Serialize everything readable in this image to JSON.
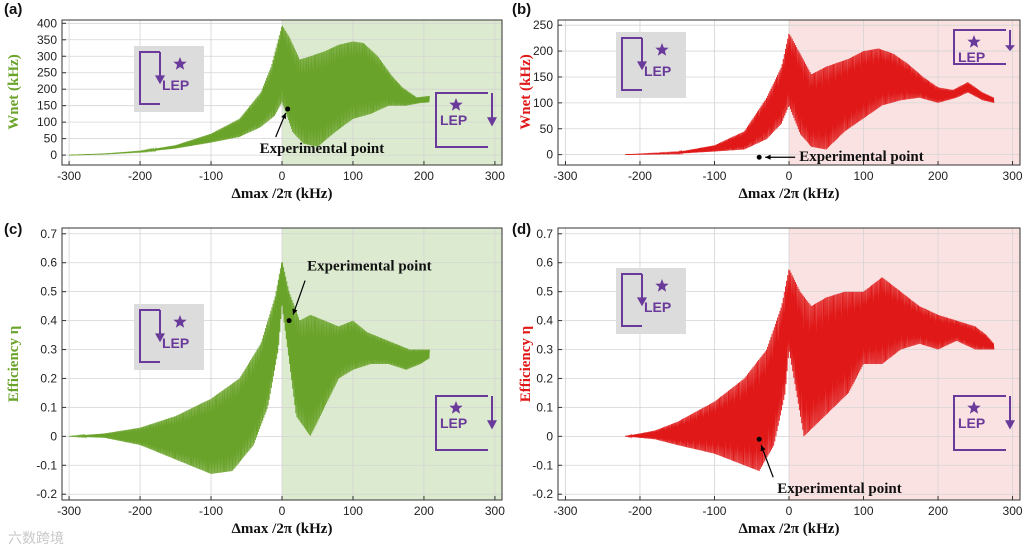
{
  "colors": {
    "green": "#6aa32a",
    "red": "#e01818",
    "green_shade": "#dcebcf",
    "red_shade": "#fbe2e2",
    "lep_purple": "#6a3a9a",
    "lep_box_gray": "#dcdcdc"
  },
  "watermark": "六数跨境",
  "chart_data": [
    {
      "panel": "(a)",
      "type": "line",
      "color_key": "green",
      "xlabel": "Δmax /2π (kHz)",
      "ylabel": "Wnet (kHz)",
      "xlim": [
        -310,
        310
      ],
      "ylim": [
        -30,
        410
      ],
      "xticks": [
        -300,
        -200,
        -100,
        0,
        100,
        200,
        300
      ],
      "yticks": [
        0,
        50,
        100,
        150,
        200,
        250,
        300,
        350,
        400
      ],
      "shaded_x": [
        0,
        310
      ],
      "series": [
        {
          "name": "Wnet",
          "x_range": [
            -300,
            208
          ],
          "lo": [
            [
              -300,
              0
            ],
            [
              -250,
              3
            ],
            [
              -200,
              9
            ],
            [
              -150,
              20
            ],
            [
              -100,
              38
            ],
            [
              -60,
              55
            ],
            [
              -30,
              85
            ],
            [
              -10,
              120
            ],
            [
              -5,
              140
            ],
            [
              0,
              160
            ],
            [
              15,
              70
            ],
            [
              30,
              35
            ],
            [
              50,
              25
            ],
            [
              75,
              70
            ],
            [
              100,
              110
            ],
            [
              125,
              125
            ],
            [
              150,
              150
            ],
            [
              175,
              150
            ],
            [
              195,
              158
            ],
            [
              208,
              160
            ]
          ],
          "hi": [
            [
              -300,
              0
            ],
            [
              -250,
              4
            ],
            [
              -200,
              12
            ],
            [
              -150,
              30
            ],
            [
              -100,
              65
            ],
            [
              -60,
              110
            ],
            [
              -30,
              190
            ],
            [
              -15,
              270
            ],
            [
              0,
              395
            ],
            [
              10,
              360
            ],
            [
              25,
              290
            ],
            [
              40,
              300
            ],
            [
              60,
              315
            ],
            [
              80,
              335
            ],
            [
              100,
              345
            ],
            [
              115,
              340
            ],
            [
              135,
              300
            ],
            [
              155,
              240
            ],
            [
              170,
              205
            ],
            [
              190,
              175
            ],
            [
              208,
              180
            ]
          ]
        }
      ],
      "experimental_point": {
        "x": 8,
        "y": 140
      },
      "annotation": "Experimental point",
      "insets": [
        {
          "label": "LEP",
          "position": "center-left",
          "style": "gray",
          "arrow": "down-left"
        },
        {
          "label": "LEP",
          "position": "bottom-right",
          "style": "white",
          "arrow": "down-right"
        }
      ]
    },
    {
      "panel": "(b)",
      "type": "line",
      "color_key": "red",
      "xlabel": "Δmax /2π (kHz)",
      "ylabel": "Wnet (kHz)",
      "xlim": [
        -310,
        310
      ],
      "ylim": [
        -20,
        260
      ],
      "xticks": [
        -300,
        -200,
        -100,
        0,
        100,
        200,
        300
      ],
      "yticks": [
        0,
        50,
        100,
        150,
        200,
        250
      ],
      "shaded_x": [
        0,
        310
      ],
      "series": [
        {
          "name": "Wnet",
          "x_range": [
            -220,
            275
          ],
          "lo": [
            [
              -220,
              0
            ],
            [
              -150,
              2
            ],
            [
              -100,
              6
            ],
            [
              -60,
              10
            ],
            [
              -30,
              30
            ],
            [
              -10,
              60
            ],
            [
              0,
              95
            ],
            [
              15,
              40
            ],
            [
              30,
              15
            ],
            [
              50,
              10
            ],
            [
              75,
              45
            ],
            [
              100,
              70
            ],
            [
              125,
              95
            ],
            [
              150,
              105
            ],
            [
              175,
              110
            ],
            [
              200,
              100
            ],
            [
              225,
              110
            ],
            [
              240,
              120
            ],
            [
              260,
              105
            ],
            [
              275,
              100
            ]
          ],
          "hi": [
            [
              -220,
              0
            ],
            [
              -150,
              5
            ],
            [
              -100,
              18
            ],
            [
              -60,
              45
            ],
            [
              -30,
              110
            ],
            [
              -10,
              170
            ],
            [
              0,
              235
            ],
            [
              15,
              195
            ],
            [
              30,
              155
            ],
            [
              50,
              170
            ],
            [
              80,
              185
            ],
            [
              100,
              200
            ],
            [
              120,
              205
            ],
            [
              140,
              195
            ],
            [
              160,
              175
            ],
            [
              180,
              150
            ],
            [
              200,
              130
            ],
            [
              220,
              125
            ],
            [
              240,
              140
            ],
            [
              260,
              120
            ],
            [
              275,
              110
            ]
          ]
        }
      ],
      "experimental_point": {
        "x": -40,
        "y": -5
      },
      "annotation": "Experimental point",
      "insets": [
        {
          "label": "LEP",
          "position": "top-left",
          "style": "gray",
          "arrow": "down-left"
        },
        {
          "label": "LEP",
          "position": "top-right",
          "style": "white",
          "arrow": "down-right"
        }
      ]
    },
    {
      "panel": "(c)",
      "type": "line",
      "color_key": "green",
      "xlabel": "Δmax /2π (kHz)",
      "ylabel": "Efficiency η",
      "xlim": [
        -310,
        310
      ],
      "ylim": [
        -0.22,
        0.72
      ],
      "xticks": [
        -300,
        -200,
        -100,
        0,
        100,
        200,
        300
      ],
      "yticks": [
        -0.2,
        -0.1,
        0,
        0.1,
        0.2,
        0.3,
        0.4,
        0.5,
        0.6,
        0.7
      ],
      "shaded_x": [
        0,
        310
      ],
      "series": [
        {
          "name": "Efficiency",
          "x_range": [
            -300,
            208
          ],
          "lo": [
            [
              -300,
              0
            ],
            [
              -250,
              -0.005
            ],
            [
              -200,
              -0.03
            ],
            [
              -150,
              -0.08
            ],
            [
              -100,
              -0.13
            ],
            [
              -70,
              -0.12
            ],
            [
              -40,
              -0.03
            ],
            [
              -20,
              0.1
            ],
            [
              -5,
              0.3
            ],
            [
              0,
              0.45
            ],
            [
              20,
              0.07
            ],
            [
              40,
              0.0
            ],
            [
              60,
              0.1
            ],
            [
              80,
              0.2
            ],
            [
              100,
              0.23
            ],
            [
              125,
              0.25
            ],
            [
              150,
              0.25
            ],
            [
              175,
              0.23
            ],
            [
              195,
              0.25
            ],
            [
              208,
              0.27
            ]
          ],
          "hi": [
            [
              -300,
              0
            ],
            [
              -250,
              0.01
            ],
            [
              -200,
              0.03
            ],
            [
              -150,
              0.07
            ],
            [
              -100,
              0.13
            ],
            [
              -60,
              0.2
            ],
            [
              -30,
              0.32
            ],
            [
              -10,
              0.48
            ],
            [
              0,
              0.61
            ],
            [
              10,
              0.5
            ],
            [
              25,
              0.4
            ],
            [
              40,
              0.42
            ],
            [
              60,
              0.4
            ],
            [
              80,
              0.38
            ],
            [
              100,
              0.4
            ],
            [
              120,
              0.36
            ],
            [
              140,
              0.34
            ],
            [
              160,
              0.32
            ],
            [
              180,
              0.3
            ],
            [
              195,
              0.3
            ],
            [
              208,
              0.3
            ]
          ]
        }
      ],
      "experimental_point": {
        "x": 10,
        "y": 0.4
      },
      "annotation": "Experimental point",
      "insets": [
        {
          "label": "LEP",
          "position": "center-left",
          "style": "gray",
          "arrow": "down-left"
        },
        {
          "label": "LEP",
          "position": "bottom-right",
          "style": "white",
          "arrow": "down-right"
        }
      ]
    },
    {
      "panel": "(d)",
      "type": "line",
      "color_key": "red",
      "xlabel": "Δmax /2π (kHz)",
      "ylabel": "Efficiency η",
      "xlim": [
        -310,
        310
      ],
      "ylim": [
        -0.22,
        0.72
      ],
      "xticks": [
        -300,
        -200,
        -100,
        0,
        100,
        200,
        300
      ],
      "yticks": [
        -0.2,
        -0.1,
        0,
        0.1,
        0.2,
        0.3,
        0.4,
        0.5,
        0.6,
        0.7
      ],
      "shaded_x": [
        0,
        310
      ],
      "series": [
        {
          "name": "Efficiency",
          "x_range": [
            -220,
            275
          ],
          "lo": [
            [
              -220,
              0
            ],
            [
              -180,
              -0.01
            ],
            [
              -150,
              -0.03
            ],
            [
              -100,
              -0.06
            ],
            [
              -60,
              -0.1
            ],
            [
              -40,
              -0.12
            ],
            [
              -20,
              -0.03
            ],
            [
              -5,
              0.15
            ],
            [
              0,
              0.3
            ],
            [
              20,
              0.0
            ],
            [
              40,
              0.05
            ],
            [
              60,
              0.1
            ],
            [
              80,
              0.15
            ],
            [
              100,
              0.25
            ],
            [
              125,
              0.25
            ],
            [
              150,
              0.3
            ],
            [
              175,
              0.32
            ],
            [
              200,
              0.3
            ],
            [
              225,
              0.33
            ],
            [
              250,
              0.3
            ],
            [
              275,
              0.3
            ]
          ],
          "hi": [
            [
              -220,
              0
            ],
            [
              -180,
              0.02
            ],
            [
              -150,
              0.05
            ],
            [
              -100,
              0.12
            ],
            [
              -60,
              0.2
            ],
            [
              -30,
              0.3
            ],
            [
              -10,
              0.45
            ],
            [
              0,
              0.58
            ],
            [
              15,
              0.5
            ],
            [
              30,
              0.45
            ],
            [
              50,
              0.48
            ],
            [
              75,
              0.5
            ],
            [
              100,
              0.5
            ],
            [
              125,
              0.55
            ],
            [
              150,
              0.5
            ],
            [
              175,
              0.45
            ],
            [
              200,
              0.42
            ],
            [
              225,
              0.4
            ],
            [
              250,
              0.38
            ],
            [
              265,
              0.35
            ],
            [
              275,
              0.32
            ]
          ]
        }
      ],
      "experimental_point": {
        "x": -40,
        "y": -0.01
      },
      "annotation": "Experimental point",
      "insets": [
        {
          "label": "LEP",
          "position": "top-left",
          "style": "gray",
          "arrow": "down-left"
        },
        {
          "label": "LEP",
          "position": "bottom-right",
          "style": "white",
          "arrow": "down-right"
        }
      ]
    }
  ]
}
